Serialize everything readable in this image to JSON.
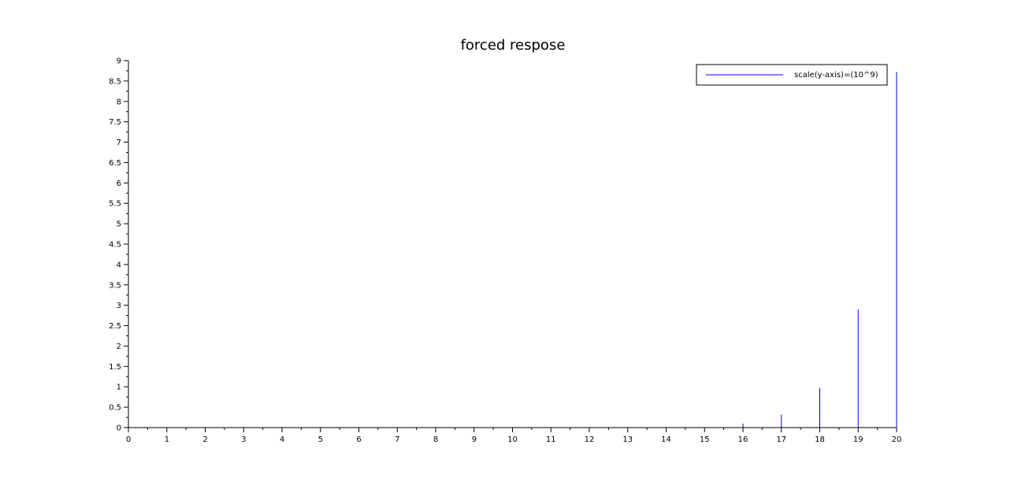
{
  "chart_data": {
    "type": "bar",
    "title": "forced respose",
    "xlabel": "",
    "ylabel": "",
    "xlim": [
      0,
      20
    ],
    "ylim": [
      0,
      9
    ],
    "x_ticks": [
      0,
      1,
      2,
      3,
      4,
      5,
      6,
      7,
      8,
      9,
      10,
      11,
      12,
      13,
      14,
      15,
      16,
      17,
      18,
      19,
      20
    ],
    "y_ticks": [
      0,
      0.5,
      1,
      1.5,
      2,
      2.5,
      3,
      3.5,
      4,
      4.5,
      5,
      5.5,
      6,
      6.5,
      7,
      7.5,
      8,
      8.5,
      9
    ],
    "grid": false,
    "legend_position": "top-right",
    "series": [
      {
        "name": "scale(y-axis)=(10^9)",
        "color": "#0000ff",
        "x": [
          0,
          1,
          2,
          3,
          4,
          5,
          6,
          7,
          8,
          9,
          10,
          11,
          12,
          13,
          14,
          15,
          16,
          17,
          18,
          19,
          20
        ],
        "values": [
          0,
          0,
          0,
          0,
          0,
          0,
          0,
          0,
          0,
          0,
          0,
          0,
          0,
          0,
          0,
          0.01,
          0.1,
          0.32,
          0.97,
          2.9,
          8.72
        ]
      }
    ]
  }
}
